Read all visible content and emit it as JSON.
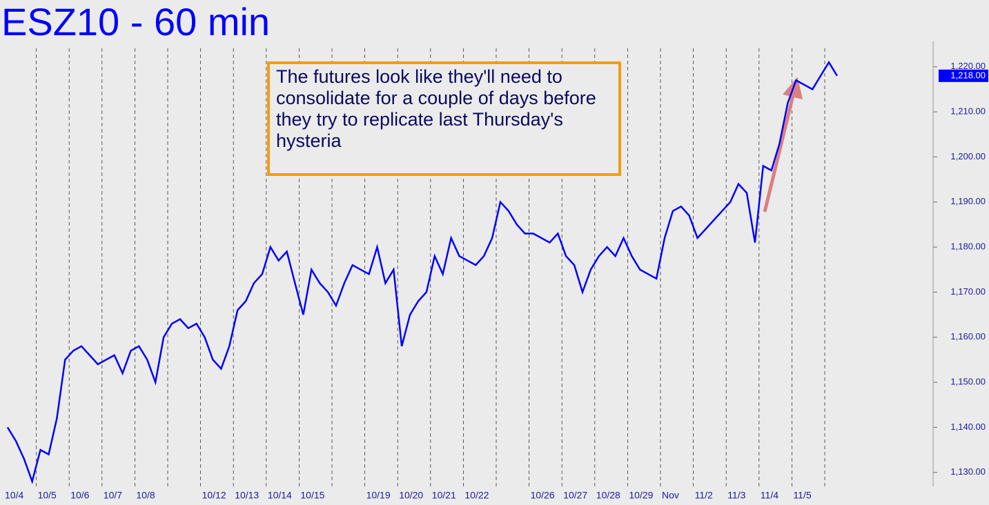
{
  "chart_data": {
    "type": "line",
    "title": "ESZ10 - 60 min",
    "annotation": "The futures look like they'll need to consolidate for a couple of days before they try to replicate last Thursday's hysteria",
    "categories": [
      "10/4",
      null,
      null,
      null,
      "10/5",
      null,
      null,
      null,
      "10/6",
      null,
      null,
      null,
      "10/7",
      null,
      null,
      null,
      "10/8",
      null,
      null,
      null,
      null,
      null,
      null,
      null,
      "10/12",
      null,
      null,
      null,
      "10/13",
      null,
      null,
      null,
      "10/14",
      null,
      null,
      null,
      "10/15",
      null,
      null,
      null,
      null,
      null,
      null,
      null,
      "10/19",
      null,
      null,
      null,
      "10/20",
      null,
      null,
      null,
      "10/21",
      null,
      null,
      null,
      "10/22",
      null,
      null,
      null,
      null,
      null,
      null,
      null,
      "10/26",
      null,
      null,
      null,
      "10/27",
      null,
      null,
      null,
      "10/28",
      null,
      null,
      null,
      "10/29",
      null,
      null,
      null,
      "Nov",
      null,
      null,
      null,
      "11/2",
      null,
      null,
      null,
      "11/3",
      null,
      null,
      null,
      "11/4",
      null,
      null,
      null,
      "11/5",
      null,
      null,
      null,
      null,
      null
    ],
    "series": [
      {
        "name": "ESZ10",
        "color": "#0000ff",
        "values": [
          1140,
          1137,
          1133,
          1128,
          1135,
          1134,
          1142,
          1155,
          1157,
          1158,
          1156,
          1154,
          1155,
          1156,
          1152,
          1157,
          1158,
          1155,
          1150,
          1160,
          1163,
          1164,
          1162,
          1163,
          1160,
          1155,
          1153,
          1158,
          1166,
          1168,
          1172,
          1174,
          1180,
          1177,
          1179,
          1172,
          1165,
          1175,
          1172,
          1170,
          1167,
          1172,
          1176,
          1175,
          1174,
          1180,
          1172,
          1175,
          1158,
          1165,
          1168,
          1170,
          1178,
          1174,
          1182,
          1178,
          1177,
          1176,
          1178,
          1182,
          1190,
          1188,
          1185,
          1183,
          1183,
          1182,
          1181,
          1183,
          1178,
          1176,
          1170,
          1175,
          1178,
          1180,
          1178,
          1182,
          1178,
          1175,
          1174,
          1173,
          1182,
          1188,
          1189,
          1187,
          1182,
          1184,
          1186,
          1188,
          1190,
          1194,
          1192,
          1181,
          1198,
          1197,
          1203,
          1212,
          1217,
          1216,
          1215,
          1218,
          1221,
          1218
        ]
      }
    ],
    "ylim": [
      1126.9,
      1224.1
    ],
    "yticks": [
      {
        "value": 1130,
        "label": "1,130.00"
      },
      {
        "value": 1140,
        "label": "1,140.00"
      },
      {
        "value": 1150,
        "label": "1,150.00"
      },
      {
        "value": 1160,
        "label": "1,160.00"
      },
      {
        "value": 1170,
        "label": "1,170.00"
      },
      {
        "value": 1180,
        "label": "1,180.00"
      },
      {
        "value": 1190,
        "label": "1,190.00"
      },
      {
        "value": 1200,
        "label": "1,200.00"
      },
      {
        "value": 1210,
        "label": "1,210.00"
      },
      {
        "value": 1220,
        "label": "1,220.00"
      }
    ],
    "last_price": {
      "value": 1218,
      "label": "1,218.00"
    }
  }
}
